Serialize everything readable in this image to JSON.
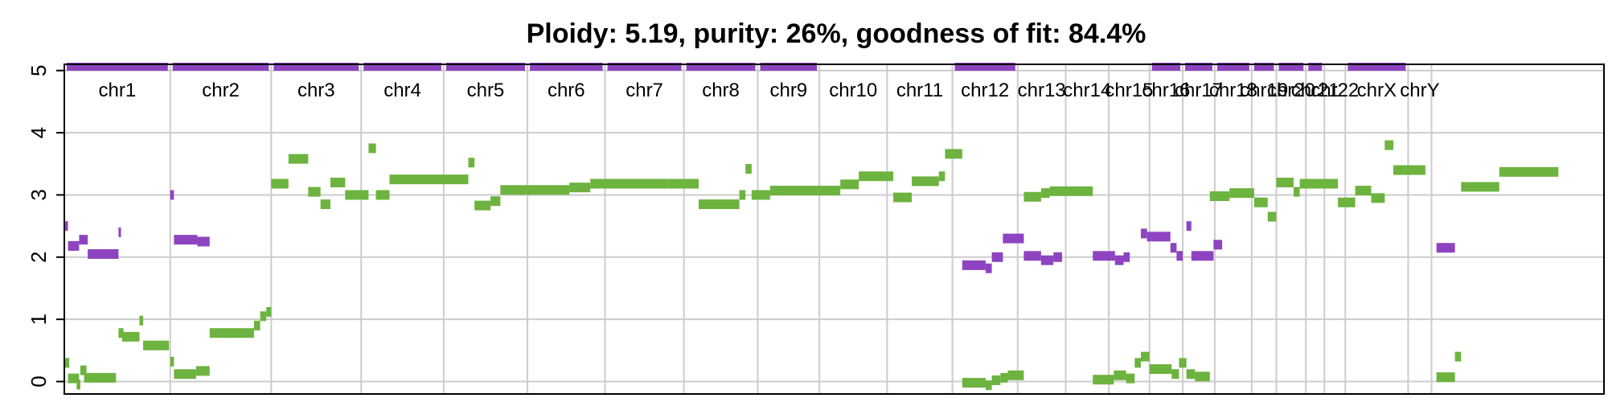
{
  "chart_data": {
    "type": "scatter",
    "title": "Ploidy: 5.19, purity: 26%, goodness of fit: 84.4%",
    "xlabel": "",
    "ylabel": "",
    "ylim": [
      -0.2,
      5.1
    ],
    "yticks": [
      "0",
      "1",
      "2",
      "3",
      "4",
      "5"
    ],
    "grid": true,
    "colors": {
      "major": "#6db33f",
      "minor": "#8e44c0",
      "grid": "#cccccc",
      "axis": "#000000"
    },
    "chromosomes": [
      {
        "name": "chr1",
        "start": 0.0,
        "end": 8.6,
        "minor_band_top": true
      },
      {
        "name": "chr2",
        "start": 8.6,
        "end": 16.8,
        "minor_band_top": true
      },
      {
        "name": "chr3",
        "start": 16.8,
        "end": 24.1,
        "minor_band_top": true
      },
      {
        "name": "chr4",
        "start": 24.1,
        "end": 30.8,
        "minor_band_top": true
      },
      {
        "name": "chr5",
        "start": 30.8,
        "end": 37.6,
        "minor_band_top": true
      },
      {
        "name": "chr6",
        "start": 37.6,
        "end": 43.9,
        "minor_band_top": true
      },
      {
        "name": "chr7",
        "start": 43.9,
        "end": 50.3,
        "minor_band_top": true
      },
      {
        "name": "chr8",
        "start": 50.3,
        "end": 56.3,
        "minor_band_top": true
      },
      {
        "name": "chr9",
        "start": 56.3,
        "end": 61.3,
        "minor_band_top": true
      },
      {
        "name": "chr10",
        "start": 61.3,
        "end": 66.8,
        "minor_band_top": false
      },
      {
        "name": "chr11",
        "start": 66.8,
        "end": 72.1,
        "minor_band_top": false
      },
      {
        "name": "chr12",
        "start": 72.1,
        "end": 77.4,
        "minor_band_top": true
      },
      {
        "name": "chr13",
        "start": 77.4,
        "end": 81.3,
        "minor_band_top": false
      },
      {
        "name": "chr14",
        "start": 81.3,
        "end": 84.8,
        "minor_band_top": false
      },
      {
        "name": "chr15",
        "start": 84.8,
        "end": 88.1,
        "minor_band_top": false
      },
      {
        "name": "chr16",
        "start": 88.1,
        "end": 90.8,
        "minor_band_top": true
      },
      {
        "name": "chr17",
        "start": 90.8,
        "end": 93.4,
        "minor_band_top": true
      },
      {
        "name": "chr18",
        "start": 93.4,
        "end": 96.4,
        "minor_band_top": true
      },
      {
        "name": "chr19",
        "start": 96.4,
        "end": 98.4,
        "minor_band_top": true
      },
      {
        "name": "chr20",
        "start": 98.4,
        "end": 100.8,
        "minor_band_top": true
      },
      {
        "name": "chr21",
        "start": 100.8,
        "end": 102.3,
        "minor_band_top": true
      },
      {
        "name": "chr22",
        "start": 102.3,
        "end": 104.0,
        "minor_band_top": false
      },
      {
        "name": "chrX",
        "start": 104.0,
        "end": 109.1,
        "minor_band_top": true
      },
      {
        "name": "chrY",
        "start": 109.1,
        "end": 111.0,
        "minor_band_top": false
      }
    ],
    "series": [
      {
        "name": "major",
        "segments": [
          {
            "x0": 0.0,
            "x1": 0.4,
            "y": 0.3
          },
          {
            "x0": 0.3,
            "x1": 1.2,
            "y": 0.05
          },
          {
            "x0": 1.0,
            "x1": 1.3,
            "y": -0.05
          },
          {
            "x0": 1.3,
            "x1": 1.8,
            "y": 0.18
          },
          {
            "x0": 1.6,
            "x1": 4.2,
            "y": 0.06
          },
          {
            "x0": 4.4,
            "x1": 4.8,
            "y": 0.78
          },
          {
            "x0": 4.7,
            "x1": 6.1,
            "y": 0.72
          },
          {
            "x0": 6.1,
            "x1": 6.4,
            "y": 0.98
          },
          {
            "x0": 6.4,
            "x1": 8.5,
            "y": 0.58
          },
          {
            "x0": 8.6,
            "x1": 8.9,
            "y": 0.32
          },
          {
            "x0": 8.9,
            "x1": 10.7,
            "y": 0.12
          },
          {
            "x0": 10.7,
            "x1": 11.8,
            "y": 0.17
          },
          {
            "x0": 11.8,
            "x1": 15.4,
            "y": 0.78
          },
          {
            "x0": 15.4,
            "x1": 15.9,
            "y": 0.9
          },
          {
            "x0": 15.9,
            "x1": 16.4,
            "y": 1.05
          },
          {
            "x0": 16.4,
            "x1": 16.8,
            "y": 1.12
          },
          {
            "x0": 16.8,
            "x1": 18.2,
            "y": 3.18
          },
          {
            "x0": 18.2,
            "x1": 19.8,
            "y": 3.58
          },
          {
            "x0": 19.8,
            "x1": 20.8,
            "y": 3.05
          },
          {
            "x0": 20.8,
            "x1": 21.6,
            "y": 2.85
          },
          {
            "x0": 21.6,
            "x1": 22.8,
            "y": 3.2
          },
          {
            "x0": 22.8,
            "x1": 24.7,
            "y": 3.0
          },
          {
            "x0": 24.7,
            "x1": 25.3,
            "y": 3.75
          },
          {
            "x0": 25.3,
            "x1": 26.4,
            "y": 3.0
          },
          {
            "x0": 26.4,
            "x1": 32.8,
            "y": 3.25
          },
          {
            "x0": 32.8,
            "x1": 33.3,
            "y": 3.52
          },
          {
            "x0": 33.3,
            "x1": 34.6,
            "y": 2.83
          },
          {
            "x0": 34.6,
            "x1": 35.4,
            "y": 2.9
          },
          {
            "x0": 35.4,
            "x1": 41.0,
            "y": 3.08
          },
          {
            "x0": 41.0,
            "x1": 42.7,
            "y": 3.12
          },
          {
            "x0": 42.7,
            "x1": 49.0,
            "y": 3.18
          },
          {
            "x0": 49.0,
            "x1": 51.5,
            "y": 3.18
          },
          {
            "x0": 51.5,
            "x1": 54.8,
            "y": 2.85
          },
          {
            "x0": 54.8,
            "x1": 55.3,
            "y": 3.0
          },
          {
            "x0": 55.3,
            "x1": 55.8,
            "y": 3.42
          },
          {
            "x0": 55.8,
            "x1": 57.3,
            "y": 3.0
          },
          {
            "x0": 57.3,
            "x1": 63.0,
            "y": 3.07
          },
          {
            "x0": 63.0,
            "x1": 64.5,
            "y": 3.17
          },
          {
            "x0": 64.5,
            "x1": 67.3,
            "y": 3.3
          },
          {
            "x0": 67.3,
            "x1": 68.8,
            "y": 2.96
          },
          {
            "x0": 68.8,
            "x1": 71.0,
            "y": 3.22
          },
          {
            "x0": 71.0,
            "x1": 71.5,
            "y": 3.3
          },
          {
            "x0": 71.5,
            "x1": 72.9,
            "y": 3.66
          },
          {
            "x0": 72.9,
            "x1": 74.8,
            "y": -0.02
          },
          {
            "x0": 74.8,
            "x1": 75.3,
            "y": -0.06
          },
          {
            "x0": 75.3,
            "x1": 76.0,
            "y": 0.02
          },
          {
            "x0": 76.0,
            "x1": 76.6,
            "y": 0.06
          },
          {
            "x0": 76.6,
            "x1": 77.9,
            "y": 0.1
          },
          {
            "x0": 77.9,
            "x1": 79.3,
            "y": 2.97
          },
          {
            "x0": 79.3,
            "x1": 80.0,
            "y": 3.03
          },
          {
            "x0": 80.0,
            "x1": 83.5,
            "y": 3.06
          },
          {
            "x0": 83.5,
            "x1": 85.2,
            "y": 0.03
          },
          {
            "x0": 85.2,
            "x1": 86.2,
            "y": 0.1
          },
          {
            "x0": 86.2,
            "x1": 86.9,
            "y": 0.05
          },
          {
            "x0": 86.9,
            "x1": 87.4,
            "y": 0.3
          },
          {
            "x0": 87.4,
            "x1": 88.1,
            "y": 0.4
          },
          {
            "x0": 88.1,
            "x1": 89.9,
            "y": 0.2
          },
          {
            "x0": 89.9,
            "x1": 90.5,
            "y": 0.12
          },
          {
            "x0": 90.5,
            "x1": 91.1,
            "y": 0.3
          },
          {
            "x0": 91.1,
            "x1": 91.8,
            "y": 0.12
          },
          {
            "x0": 91.8,
            "x1": 93.0,
            "y": 0.08
          },
          {
            "x0": 93.0,
            "x1": 94.6,
            "y": 2.98
          },
          {
            "x0": 94.6,
            "x1": 96.6,
            "y": 3.03
          },
          {
            "x0": 96.6,
            "x1": 97.7,
            "y": 2.88
          },
          {
            "x0": 97.7,
            "x1": 98.4,
            "y": 2.65
          },
          {
            "x0": 98.4,
            "x1": 99.8,
            "y": 3.2
          },
          {
            "x0": 99.8,
            "x1": 100.3,
            "y": 3.05
          },
          {
            "x0": 100.3,
            "x1": 103.4,
            "y": 3.18
          },
          {
            "x0": 103.4,
            "x1": 104.8,
            "y": 2.88
          },
          {
            "x0": 104.8,
            "x1": 106.1,
            "y": 3.07
          },
          {
            "x0": 106.1,
            "x1": 107.2,
            "y": 2.95
          },
          {
            "x0": 107.2,
            "x1": 107.9,
            "y": 3.8
          },
          {
            "x0": 107.9,
            "x1": 110.5,
            "y": 3.4
          },
          {
            "x0": 111.4,
            "x1": 112.9,
            "y": 0.07
          },
          {
            "x0": 112.9,
            "x1": 113.4,
            "y": 0.4
          },
          {
            "x0": 113.4,
            "x1": 116.5,
            "y": 3.13
          },
          {
            "x0": 116.5,
            "x1": 121.3,
            "y": 3.37
          }
        ]
      },
      {
        "name": "minor",
        "segments": [
          {
            "x0": 0.0,
            "x1": 0.3,
            "y": 2.5
          },
          {
            "x0": 0.3,
            "x1": 1.2,
            "y": 2.18
          },
          {
            "x0": 1.2,
            "x1": 1.9,
            "y": 2.28
          },
          {
            "x0": 1.9,
            "x1": 4.4,
            "y": 2.05
          },
          {
            "x0": 4.4,
            "x1": 4.6,
            "y": 2.4
          },
          {
            "x0": 8.6,
            "x1": 8.9,
            "y": 3.0
          },
          {
            "x0": 8.9,
            "x1": 10.8,
            "y": 2.28
          },
          {
            "x0": 10.8,
            "x1": 11.8,
            "y": 2.25
          },
          {
            "x0": 77.9,
            "x1": 79.3,
            "y": 2.02
          },
          {
            "x0": 79.3,
            "x1": 80.3,
            "y": 1.95
          },
          {
            "x0": 80.3,
            "x1": 81.0,
            "y": 2.0
          },
          {
            "x0": 72.9,
            "x1": 74.8,
            "y": 1.87
          },
          {
            "x0": 74.8,
            "x1": 75.3,
            "y": 1.82
          },
          {
            "x0": 75.3,
            "x1": 76.2,
            "y": 2.0
          },
          {
            "x0": 76.2,
            "x1": 77.9,
            "y": 2.3
          },
          {
            "x0": 83.5,
            "x1": 85.3,
            "y": 2.02
          },
          {
            "x0": 85.3,
            "x1": 86.0,
            "y": 1.95
          },
          {
            "x0": 86.0,
            "x1": 86.5,
            "y": 2.0
          },
          {
            "x0": 87.4,
            "x1": 87.9,
            "y": 2.38
          },
          {
            "x0": 87.9,
            "x1": 89.8,
            "y": 2.33
          },
          {
            "x0": 89.8,
            "x1": 90.3,
            "y": 2.15
          },
          {
            "x0": 90.3,
            "x1": 90.8,
            "y": 2.02
          },
          {
            "x0": 91.1,
            "x1": 91.5,
            "y": 2.5
          },
          {
            "x0": 91.5,
            "x1": 93.3,
            "y": 2.02
          },
          {
            "x0": 93.3,
            "x1": 94.0,
            "y": 2.2
          },
          {
            "x0": 111.4,
            "x1": 112.9,
            "y": 2.15
          }
        ]
      }
    ]
  }
}
